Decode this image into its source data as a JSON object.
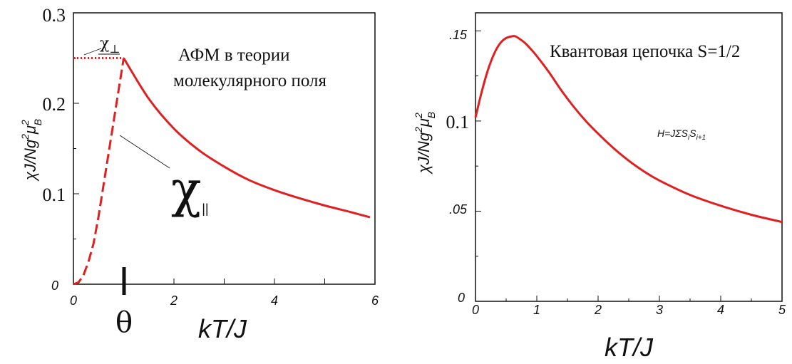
{
  "chart_data": [
    {
      "type": "line",
      "xlabel": "kT/J",
      "ylabel": "χJ/Ng²μ_B²",
      "xlim": [
        0,
        6
      ],
      "ylim": [
        0,
        0.3
      ],
      "x_ticks": [
        "0",
        "2",
        "4",
        "6"
      ],
      "y_ticks": [
        "0",
        "0.1",
        "0.2",
        "0.3"
      ],
      "theta_label": "θ",
      "theta_x": 1.0,
      "annotation": [
        "АФМ в теории",
        "молекулярного поля"
      ],
      "chi_perp_label": "χ⊥",
      "chi_par_label": "χ||",
      "color": "#e02020",
      "series": [
        {
          "style": "dotted",
          "x": [
            0,
            0.5,
            1.0
          ],
          "y": [
            0.25,
            0.25,
            0.25
          ]
        },
        {
          "style": "dashed",
          "x": [
            0,
            0.1,
            0.2,
            0.3,
            0.4,
            0.5,
            0.6,
            0.7,
            0.8,
            0.9,
            1.0
          ],
          "y": [
            0,
            0.002,
            0.01,
            0.025,
            0.045,
            0.075,
            0.11,
            0.145,
            0.18,
            0.215,
            0.25
          ]
        },
        {
          "style": "solid",
          "x": [
            1.0,
            1.5,
            2.0,
            2.5,
            3.0,
            3.5,
            4.0,
            4.5,
            5.0,
            5.5,
            5.9
          ],
          "y": [
            0.25,
            0.205,
            0.172,
            0.148,
            0.13,
            0.115,
            0.104,
            0.095,
            0.087,
            0.08,
            0.074
          ]
        }
      ]
    },
    {
      "type": "line",
      "xlabel": "kT/J",
      "ylabel": "χJ/Ng²μ_B²",
      "xlim": [
        0,
        5
      ],
      "ylim": [
        0,
        0.16
      ],
      "x_ticks": [
        "0",
        "1",
        "2",
        "3",
        "4",
        "5"
      ],
      "y_ticks": [
        ".05",
        "0.1",
        ".15"
      ],
      "y_tick_zero": "0",
      "annotation": "Квантовая цепочка S=1/2",
      "hamiltonian": "H=JΣS_iS_i+1",
      "color": "#e02020",
      "series": [
        {
          "style": "solid",
          "x": [
            0,
            0.1,
            0.2,
            0.3,
            0.4,
            0.5,
            0.6,
            0.65,
            0.7,
            0.8,
            0.9,
            1.0,
            1.2,
            1.4,
            1.6,
            1.8,
            2.0,
            2.25,
            2.5,
            2.75,
            3.0,
            3.5,
            4.0,
            4.5,
            5.0
          ],
          "y": [
            0.102,
            0.116,
            0.128,
            0.137,
            0.143,
            0.146,
            0.147,
            0.147,
            0.146,
            0.1435,
            0.14,
            0.136,
            0.127,
            0.117,
            0.108,
            0.1,
            0.093,
            0.085,
            0.078,
            0.072,
            0.067,
            0.059,
            0.053,
            0.048,
            0.044
          ]
        }
      ]
    }
  ]
}
